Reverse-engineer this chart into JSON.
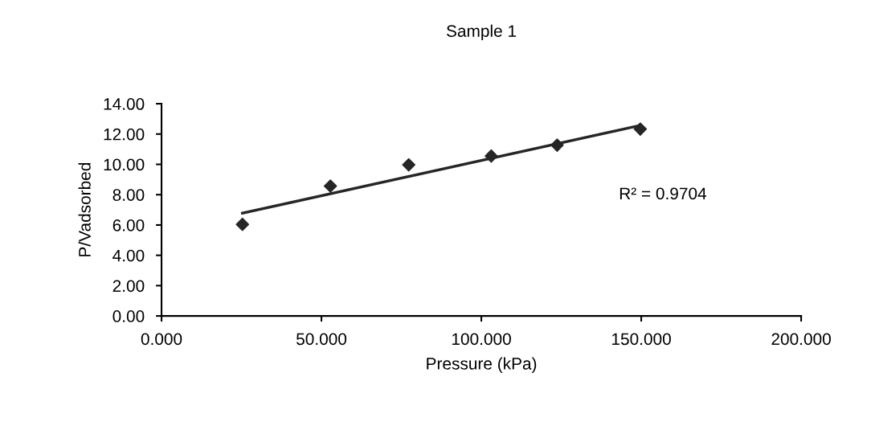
{
  "chart_data": {
    "type": "scatter",
    "title": "Sample 1",
    "xlabel": "Pressure (kPa)",
    "ylabel": "P/Vadsorbed",
    "series": [
      {
        "color": "#262626",
        "marker": "diamond",
        "x": [
          25.3,
          52.8,
          77.3,
          103.1,
          123.7,
          149.7
        ],
        "values": [
          6.04,
          8.57,
          9.97,
          10.55,
          11.27,
          12.33
        ]
      },
      {
        "type": "line",
        "color": "#262626",
        "marker": "none",
        "x": [
          25.3,
          149.7
        ],
        "values": [
          6.78,
          12.57
        ]
      }
    ],
    "annotations": [
      "R² = 0.9704"
    ],
    "xlim": [
      0,
      200
    ],
    "xticks": [
      {
        "value": 0,
        "label": "0.000"
      },
      {
        "value": 50,
        "label": "50.000"
      },
      {
        "value": 100,
        "label": "100.000"
      },
      {
        "value": 150,
        "label": "150.000"
      },
      {
        "value": 200,
        "label": "200.000"
      }
    ],
    "ylim": [
      0,
      14
    ],
    "yticks": [
      {
        "value": 0,
        "label": "0.00"
      },
      {
        "value": 2,
        "label": "2.00"
      },
      {
        "value": 4,
        "label": "4.00"
      },
      {
        "value": 6,
        "label": "6.00"
      },
      {
        "value": 8,
        "label": "8.00"
      },
      {
        "value": 10,
        "label": "10.00"
      },
      {
        "value": 12,
        "label": "12.00"
      },
      {
        "value": 14,
        "label": "14.00"
      }
    ],
    "grid": false,
    "legend": false
  }
}
